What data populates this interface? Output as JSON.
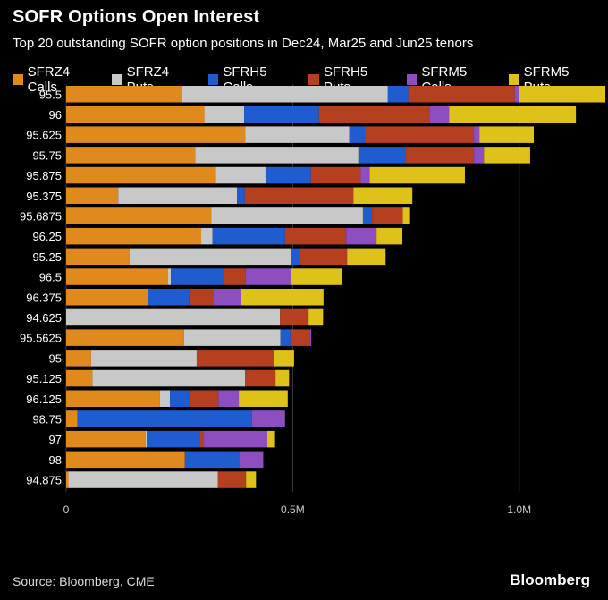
{
  "header": {
    "title": "SOFR Options Open Interest",
    "subtitle": "Top 20 outstanding SOFR option positions in Dec24, Mar25 and Jun25 tenors"
  },
  "footer": {
    "source": "Source: Bloomberg, CME",
    "brand": "Bloomberg"
  },
  "chart_data": {
    "type": "bar",
    "orientation": "horizontal",
    "stacked": true,
    "categories": [
      "95.5",
      "96",
      "95.625",
      "95.75",
      "95.875",
      "95.375",
      "95.6875",
      "96.25",
      "95.25",
      "96.5",
      "96.375",
      "94.625",
      "95.5625",
      "95",
      "95.125",
      "96.125",
      "98.75",
      "97",
      "98",
      "94.875"
    ],
    "series": [
      {
        "name": "SFRZ4 Calls",
        "color": "#e08a1e",
        "values": [
          255000,
          305000,
          395000,
          285000,
          330000,
          115000,
          320000,
          298000,
          140000,
          225000,
          180000,
          0,
          260000,
          55000,
          58000,
          207000,
          25000,
          175000,
          262000,
          5000
        ]
      },
      {
        "name": "SFRZ4 Puts",
        "color": "#c8c8c8",
        "values": [
          455000,
          88000,
          230000,
          360000,
          110000,
          262000,
          335000,
          25000,
          357000,
          6000,
          0,
          472000,
          213000,
          233000,
          337000,
          22000,
          0,
          3000,
          0,
          330000
        ]
      },
      {
        "name": "SFRH5 Calls",
        "color": "#1f5ccf",
        "values": [
          45000,
          165000,
          35000,
          105000,
          100000,
          17000,
          20000,
          160000,
          20000,
          118000,
          92000,
          0,
          22000,
          0,
          0,
          42000,
          385000,
          118000,
          120000,
          0
        ]
      },
      {
        "name": "SFRH5 Puts",
        "color": "#b5401f",
        "values": [
          235000,
          245000,
          240000,
          150000,
          110000,
          240000,
          68000,
          135000,
          103000,
          47000,
          52000,
          63000,
          43000,
          170000,
          67000,
          65000,
          0,
          8000,
          0,
          62000
        ]
      },
      {
        "name": "SFRM5 Calls",
        "color": "#8d4fc0",
        "values": [
          10000,
          42000,
          12000,
          22000,
          20000,
          0,
          0,
          67000,
          0,
          100000,
          62000,
          0,
          3000,
          0,
          0,
          45000,
          73000,
          140000,
          53000,
          0
        ]
      },
      {
        "name": "SFRM5 Puts",
        "color": "#dec21a",
        "values": [
          190000,
          280000,
          120000,
          102000,
          210000,
          130000,
          14000,
          57000,
          85000,
          112000,
          182000,
          32000,
          0,
          45000,
          30000,
          108000,
          0,
          17000,
          0,
          22000
        ]
      }
    ],
    "x_ticks": [
      {
        "value": 0,
        "label": "0"
      },
      {
        "value": 500000,
        "label": "0.5M"
      },
      {
        "value": 1000000,
        "label": "1.0M"
      }
    ],
    "xlim": [
      0,
      1180000
    ],
    "grid": true,
    "legend_position": "top"
  }
}
